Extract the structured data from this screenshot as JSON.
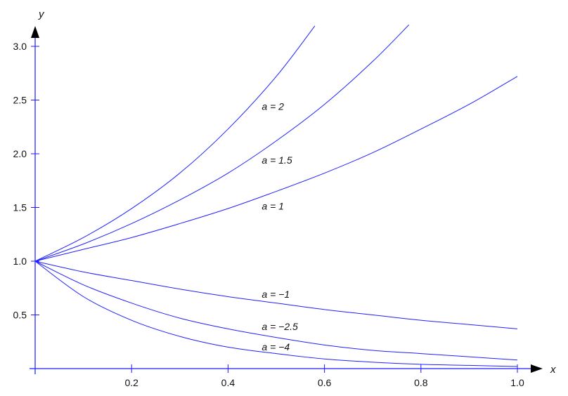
{
  "chart_data": {
    "type": "line",
    "xlabel": "x",
    "ylabel": "y",
    "xlim": [
      0,
      1.0
    ],
    "ylim": [
      0,
      3.2
    ],
    "grid": false,
    "legend": "none",
    "x_ticks": [
      "0.2",
      "0.4",
      "0.6",
      "0.8",
      "1.0"
    ],
    "y_ticks": [
      "0.5",
      "1.0",
      "1.5",
      "2.0",
      "2.5",
      "3.0"
    ],
    "curve_color": "#2020ff",
    "series": [
      {
        "a": 2,
        "label": "a = 2",
        "x": [
          0,
          0.1,
          0.2,
          0.3,
          0.4,
          0.5,
          0.58
        ],
        "values": [
          1.0,
          1.22,
          1.49,
          1.82,
          2.23,
          2.72,
          3.19
        ]
      },
      {
        "a": 1.5,
        "label": "a = 1.5",
        "x": [
          0,
          0.1,
          0.2,
          0.3,
          0.4,
          0.5,
          0.6,
          0.7,
          0.775
        ],
        "values": [
          1.0,
          1.16,
          1.35,
          1.57,
          1.82,
          2.12,
          2.46,
          2.86,
          3.2
        ]
      },
      {
        "a": 1,
        "label": "a = 1",
        "x": [
          0,
          0.1,
          0.2,
          0.3,
          0.4,
          0.5,
          0.6,
          0.7,
          0.8,
          0.9,
          1.0
        ],
        "values": [
          1.0,
          1.11,
          1.22,
          1.35,
          1.49,
          1.65,
          1.82,
          2.01,
          2.23,
          2.46,
          2.72
        ]
      },
      {
        "a": -1,
        "label": "a = −1",
        "x": [
          0,
          0.1,
          0.2,
          0.3,
          0.4,
          0.5,
          0.6,
          0.7,
          0.8,
          0.9,
          1.0
        ],
        "values": [
          1.0,
          0.9,
          0.82,
          0.74,
          0.67,
          0.61,
          0.55,
          0.5,
          0.45,
          0.41,
          0.37
        ]
      },
      {
        "a": -2.5,
        "label": "a = −2.5",
        "x": [
          0,
          0.1,
          0.2,
          0.3,
          0.4,
          0.5,
          0.6,
          0.7,
          0.8,
          0.9,
          1.0
        ],
        "values": [
          1.0,
          0.78,
          0.61,
          0.47,
          0.37,
          0.29,
          0.22,
          0.17,
          0.14,
          0.11,
          0.08
        ]
      },
      {
        "a": -4,
        "label": "a = −4",
        "x": [
          0,
          0.1,
          0.2,
          0.3,
          0.4,
          0.5,
          0.6,
          0.7,
          0.8,
          0.9,
          1.0
        ],
        "values": [
          1.0,
          0.67,
          0.45,
          0.3,
          0.2,
          0.14,
          0.09,
          0.06,
          0.04,
          0.03,
          0.02
        ]
      }
    ],
    "annotations": [
      {
        "text": "a = 2",
        "x": 0.47,
        "y": 2.41
      },
      {
        "text": "a = 1.5",
        "x": 0.47,
        "y": 1.91
      },
      {
        "text": "a = 1",
        "x": 0.47,
        "y": 1.48
      },
      {
        "text": "a = −1",
        "x": 0.47,
        "y": 0.66
      },
      {
        "text": "a = −2.5",
        "x": 0.47,
        "y": 0.36
      },
      {
        "text": "a = −4",
        "x": 0.47,
        "y": 0.17
      }
    ]
  }
}
